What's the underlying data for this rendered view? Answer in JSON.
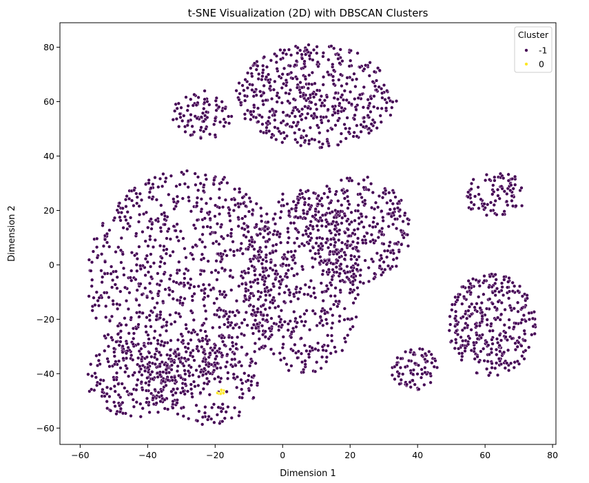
{
  "chart_data": {
    "type": "scatter",
    "title": "t-SNE Visualization (2D) with DBSCAN Clusters",
    "xlabel": "Dimension 1",
    "ylabel": "Dimension 2",
    "xlim": [
      -66,
      81
    ],
    "ylim": [
      -66,
      89
    ],
    "xticks": [
      -60,
      -40,
      -20,
      0,
      20,
      40,
      60,
      80
    ],
    "yticks": [
      -60,
      -40,
      -20,
      0,
      20,
      40,
      60,
      80
    ],
    "grid": false,
    "legend": {
      "title": "Cluster",
      "placement": "top-right",
      "entries": [
        {
          "label": "-1",
          "color": "#440154"
        },
        {
          "label": "0",
          "color": "#fde725"
        }
      ]
    },
    "series": [
      {
        "name": "-1",
        "color": "#440154",
        "clusters": [
          {
            "cx": 10,
            "cy": 62,
            "rx": 24,
            "ry": 19,
            "count": 520
          },
          {
            "cx": -24,
            "cy": 55,
            "rx": 9,
            "ry": 9,
            "count": 90
          },
          {
            "cx": 63,
            "cy": 26,
            "rx": 10,
            "ry": 8,
            "count": 90
          },
          {
            "cx": 62,
            "cy": -22,
            "rx": 13,
            "ry": 19,
            "count": 340
          },
          {
            "cx": 39,
            "cy": -38,
            "rx": 7,
            "ry": 8,
            "count": 80
          },
          {
            "cx": -28,
            "cy": -5,
            "rx": 30,
            "ry": 40,
            "count": 900
          },
          {
            "cx": 6,
            "cy": -6,
            "rx": 18,
            "ry": 34,
            "count": 500
          },
          {
            "cx": 22,
            "cy": 13,
            "rx": 16,
            "ry": 20,
            "count": 330
          },
          {
            "cx": -43,
            "cy": -42,
            "rx": 15,
            "ry": 15,
            "count": 220
          },
          {
            "cx": -22,
            "cy": -42,
            "rx": 15,
            "ry": 17,
            "count": 200
          }
        ]
      },
      {
        "name": "0",
        "color": "#fde725",
        "clusters": [
          {
            "cx": -18.5,
            "cy": -46.5,
            "rx": 1.2,
            "ry": 1.2,
            "count": 10
          }
        ]
      }
    ]
  }
}
